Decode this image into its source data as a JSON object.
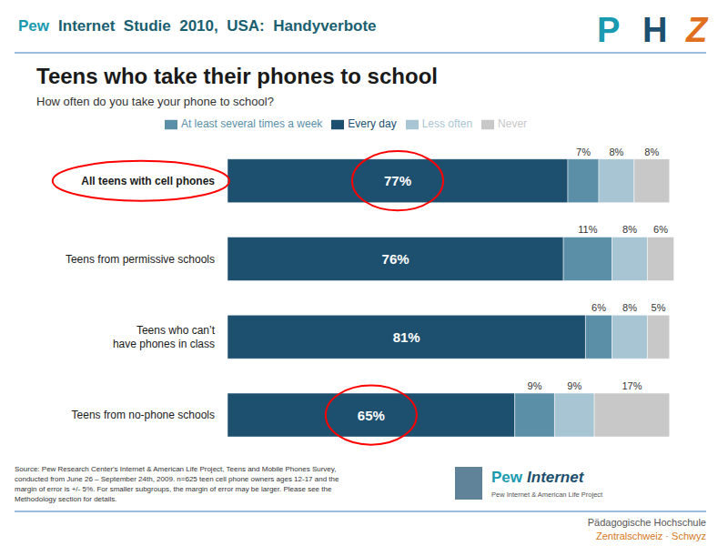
{
  "chart_data": {
    "type": "bar",
    "orientation": "horizontal",
    "stacked": true,
    "data_labels": true,
    "tick_labels": "y",
    "grid": false,
    "legend": "top",
    "title": "Teens who take their phones to school",
    "subtitle": "How often do you take your phone to school?",
    "categories": [
      "All teens with cell phones",
      "Teens from permissive schools",
      "Teens who can’t\nhave phones in class",
      "Teens from no-phone schools"
    ],
    "xlim": [
      0,
      105
    ],
    "series": [
      {
        "name": "Every day",
        "color": "#1d4f6e",
        "values": [
          77,
          76,
          81,
          65
        ],
        "value_labels": [
          "77%",
          "76%",
          "81%",
          "65%"
        ]
      },
      {
        "name": "At least several times a week",
        "color": "#5b8fa8",
        "values": [
          7,
          11,
          6,
          9
        ],
        "value_labels": [
          "7%",
          "11%",
          "6%",
          "9%"
        ]
      },
      {
        "name": "Less often",
        "color": "#a8c5d4",
        "values": [
          8,
          8,
          8,
          9
        ],
        "value_labels": [
          "8%",
          "8%",
          "8%",
          "9%"
        ]
      },
      {
        "name": "Never",
        "color": "#c8c8c8",
        "values": [
          8,
          6,
          5,
          17
        ],
        "value_labels": [
          "8%",
          "6%",
          "5%",
          "17%"
        ]
      }
    ],
    "annotations": [
      {
        "text": "Pew",
        "color": "#1a9ab0"
      },
      {
        "text": "Internet  Studie  2010,  USA:  Handyverbote",
        "color": "#1a5f70"
      },
      {
        "text": "P",
        "color": "#1a9ab0"
      },
      {
        "text": "H",
        "color": "#1d4f6e"
      },
      {
        "text": "Z",
        "color": "#e07020"
      },
      {
        "text": "Source: Pew Research Center's Internet & American Life Project, Teens and Mobile Phones Survey,\nconducted from June 26 – September 24th, 2009. n=625 teen cell phone owners ages 12-17 and the\nmargin of error is +/- 5%. For smaller subgroups, the margin of error may be larger. Please see the\nMethodology section for details.",
        "color": "#333333"
      },
      {
        "text": "Pew",
        "color": "#1a9ab0"
      },
      {
        "text": "Internet",
        "color": "#1d4f6e"
      },
      {
        "text": "Pew Internet & American Life Project",
        "color": "#555555"
      },
      {
        "text": "Pädagogische Hochschule",
        "color": "#555555"
      },
      {
        "text": "Zentralschweiz · Schwyz",
        "color": "#d4781a"
      }
    ]
  }
}
